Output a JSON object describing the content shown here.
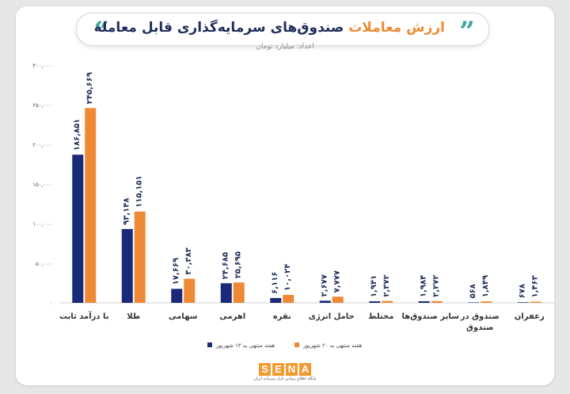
{
  "header": {
    "title_accent": "ارزش معاملات",
    "title_rest": "صندوق‌های سرمایه‌گذاری قابل معامله",
    "subtitle": "اعداد: میلیارد تومان"
  },
  "logo": {
    "letters": [
      "S",
      "E",
      "N",
      "A"
    ],
    "tagline": "پایگاه اطلاع رسانی بازار سرمایه ایران"
  },
  "chart_data": {
    "type": "bar",
    "categories": [
      "با درآمد ثابت",
      "طلا",
      "سهامی",
      "اهرمی",
      "نقره",
      "حامل انرژی",
      "مختلط",
      "سایر صندوق‌ها",
      "صندوق در صندوق",
      "زعفران"
    ],
    "category_lines": [
      [
        "با درآمد ثابت"
      ],
      [
        "طلا"
      ],
      [
        "سهامی"
      ],
      [
        "اهرمی"
      ],
      [
        "نقره"
      ],
      [
        "حامل انرژی"
      ],
      [
        "مختلط"
      ],
      [
        "سایر صندوق‌ها"
      ],
      [
        "صندوق در",
        "صندوق"
      ],
      [
        "زعفران"
      ]
    ],
    "series": [
      {
        "name": "هفته منتهی به ۱۳ شهریور",
        "color": "#1b2a78",
        "values": [
          186851,
          93148,
          17669,
          24685,
          6116,
          2677,
          1941,
          1984,
          568,
          678
        ],
        "labels": [
          "۱۸۶,۸۵۱",
          "۹۳,۱۴۸",
          "۱۷,۶۶۹",
          "۲۴,۶۸۵",
          "۶,۱۱۶",
          "۲,۶۷۷",
          "۱,۹۴۱",
          "۱,۹۸۴",
          "۵۶۸",
          "۶۷۸"
        ]
      },
      {
        "name": "هفته منتهی به ۲۰ شهریور",
        "color": "#ee8a35",
        "values": [
          245669,
          115151,
          30383,
          25695,
          10024,
          7777,
          2372,
          2272,
          1849,
          1463
        ],
        "labels": [
          "۲۴۵,۶۶۹",
          "۱۱۵,۱۵۱",
          "۳۰,۳۸۳",
          "۲۵,۶۹۵",
          "۱۰,۰۲۴",
          "۷,۷۷۷",
          "۲,۳۷۲",
          "۲,۲۷۲",
          "۱,۸۴۹",
          "۱,۴۶۳"
        ]
      }
    ],
    "ylim": [
      0,
      300000
    ],
    "yticks": [
      0,
      50000,
      100000,
      150000,
      200000,
      250000,
      300000
    ],
    "ytick_labels": [
      "۰",
      "۵۰,۰۰۰",
      "۱۰۰,۰۰۰",
      "۱۵۰,۰۰۰",
      "۲۰۰,۰۰۰",
      "۲۵۰,۰۰۰",
      "۳۰۰,۰۰۰"
    ],
    "grid": false,
    "legend_position": "bottom"
  }
}
